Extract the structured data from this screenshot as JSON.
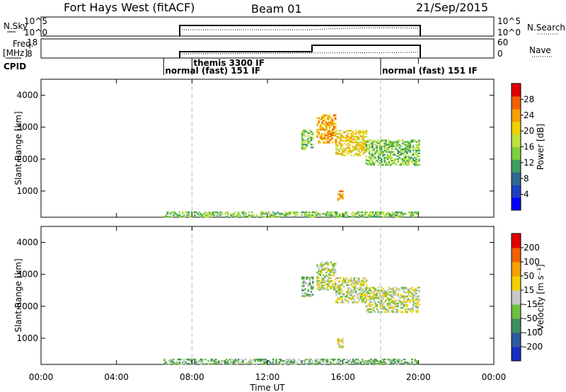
{
  "header": {
    "station": "Fort Hays West (fitACF)",
    "beam": "Beam 01",
    "date": "21/Sep/2015"
  },
  "panels": {
    "nsky_label": "N.Sky",
    "nsky_ticks": [
      "10^5",
      "10^0"
    ],
    "nsky_right_ticks": [
      "10^5",
      "10^0"
    ],
    "nsearch_label": "N.Search",
    "freq_label": "Freq.",
    "freq_unit": "[MHz]",
    "freq_ticks": [
      "18",
      "8"
    ],
    "nave_ticks": [
      "60",
      "0"
    ],
    "nave_label": "Nave",
    "cpid_label": "CPID",
    "cpid_segments": [
      {
        "label": "normal (fast) 151 IF",
        "start": 6.5,
        "end": 8.0
      },
      {
        "label": "themis 3300 IF",
        "start": 8.0,
        "end": 18.0
      },
      {
        "label": "normal (fast) 151 IF",
        "start": 18.0,
        "end": 20.0
      }
    ]
  },
  "chart_data": [
    {
      "type": "heatmap",
      "name": "power",
      "xlabel": "",
      "ylabel": "Slant Range [km]",
      "xlim": [
        0,
        24
      ],
      "ylim": [
        180,
        4500
      ],
      "yticks": [
        1000,
        2000,
        3000,
        4000
      ],
      "colorbar_label": "Power [dB]",
      "colorbar_ticks": [
        "28",
        "24",
        "20",
        "16",
        "12",
        "8",
        "4"
      ],
      "colors": [
        "#0000ff",
        "#1f3fbf",
        "#2f6a8f",
        "#3f9f5f",
        "#7fcf3f",
        "#bfe03f",
        "#f0d000",
        "#f5a000",
        "#f06000",
        "#e00000"
      ],
      "regions": [
        {
          "t0": 6.5,
          "t1": 20.0,
          "r0": 180,
          "r1": 350,
          "level": 4
        },
        {
          "t0": 13.8,
          "t1": 14.4,
          "r0": 2300,
          "r1": 2900,
          "level": 4
        },
        {
          "t0": 14.6,
          "t1": 15.6,
          "r0": 2500,
          "r1": 3400,
          "level": 7
        },
        {
          "t0": 15.6,
          "t1": 17.2,
          "r0": 2100,
          "r1": 2900,
          "level": 6
        },
        {
          "t0": 17.2,
          "t1": 20.0,
          "r0": 1800,
          "r1": 2600,
          "level": 4
        },
        {
          "t0": 15.7,
          "t1": 16.0,
          "r0": 700,
          "r1": 1000,
          "level": 7
        }
      ]
    },
    {
      "type": "heatmap",
      "name": "velocity",
      "xlabel": "Time UT",
      "ylabel": "Slant Range [km]",
      "xlim": [
        0,
        24
      ],
      "ylim": [
        180,
        4500
      ],
      "yticks": [
        1000,
        2000,
        3000,
        4000
      ],
      "colorbar_label": "Velocity [m s⁻¹]",
      "colorbar_ticks": [
        "200",
        "100",
        "50",
        "15",
        "-15",
        "-50",
        "-100",
        "-200"
      ],
      "colors": [
        "#1a2fbf",
        "#2f5aa0",
        "#3f8f5f",
        "#6fbf3f",
        "#c8c8c8",
        "#f0d000",
        "#f5a000",
        "#f06000",
        "#e00000"
      ],
      "regions": [
        {
          "t0": 6.5,
          "t1": 20.0,
          "r0": 180,
          "r1": 350,
          "level": 3
        },
        {
          "t0": 13.8,
          "t1": 14.4,
          "r0": 2300,
          "r1": 2900,
          "level": 3
        },
        {
          "t0": 14.6,
          "t1": 15.6,
          "r0": 2500,
          "r1": 3400,
          "level": 4
        },
        {
          "t0": 15.6,
          "t1": 17.2,
          "r0": 2100,
          "r1": 2900,
          "level": 4
        },
        {
          "t0": 17.2,
          "t1": 20.0,
          "r0": 1800,
          "r1": 2600,
          "level": 4
        },
        {
          "t0": 15.7,
          "t1": 16.0,
          "r0": 700,
          "r1": 1000,
          "level": 4
        }
      ]
    }
  ],
  "time_axis": {
    "label": "Time UT",
    "ticks": [
      "00:00",
      "04:00",
      "08:00",
      "12:00",
      "16:00",
      "20:00",
      "00:00"
    ],
    "tick_hours": [
      0,
      4,
      8,
      12,
      16,
      20,
      24
    ],
    "dashed_hours": [
      8,
      18
    ]
  }
}
